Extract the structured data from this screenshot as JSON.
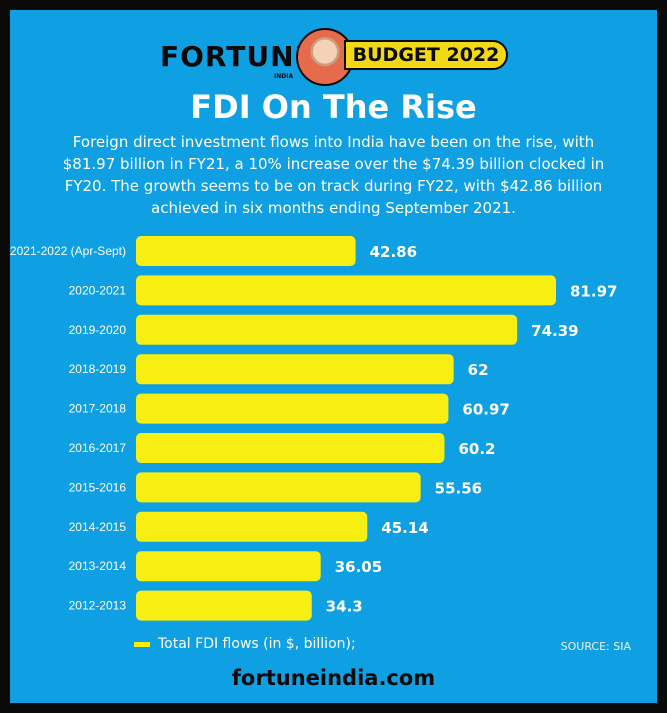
{
  "header": {
    "brand": "FORTUNE",
    "brand_sub": "INDIA",
    "budget_label": "BUDGET 2022"
  },
  "title": "FDI On The Rise",
  "subtitle": "Foreign direct investment flows into India have been on the rise, with $81.97 billion in FY21, a 10% increase over the $74.39 billion clocked in FY20. The growth seems to be on track during FY22, with $42.86 billion achieved in six months ending September 2021.",
  "legend_label": "Total FDI flows (in $, billion);",
  "source": "SOURCE: SIA",
  "footer": "fortuneindia.com",
  "colors": {
    "background": "#0f9fe3",
    "bar": "#f7ee12",
    "text": "#ffffff"
  },
  "chart_data": {
    "type": "bar",
    "orientation": "horizontal",
    "categories": [
      "2021-2022 (Apr-Sept)",
      "2020-2021",
      "2019-2020",
      "2018-2019",
      "2017-2018",
      "2016-2017",
      "2015-2016",
      "2014-2015",
      "2013-2014",
      "2012-2013"
    ],
    "values": [
      42.86,
      81.97,
      74.39,
      62,
      60.97,
      60.2,
      55.56,
      45.14,
      36.05,
      34.3
    ],
    "value_labels": [
      "42.86",
      "81.97",
      "74.39",
      "62",
      "60.97",
      "60.2",
      "55.56",
      "45.14",
      "36.05",
      "34.3"
    ],
    "series": [
      {
        "name": "Total FDI flows (in $, billion);"
      }
    ],
    "xlim": [
      0,
      90
    ],
    "grid": false,
    "legend": "bottom-left"
  }
}
